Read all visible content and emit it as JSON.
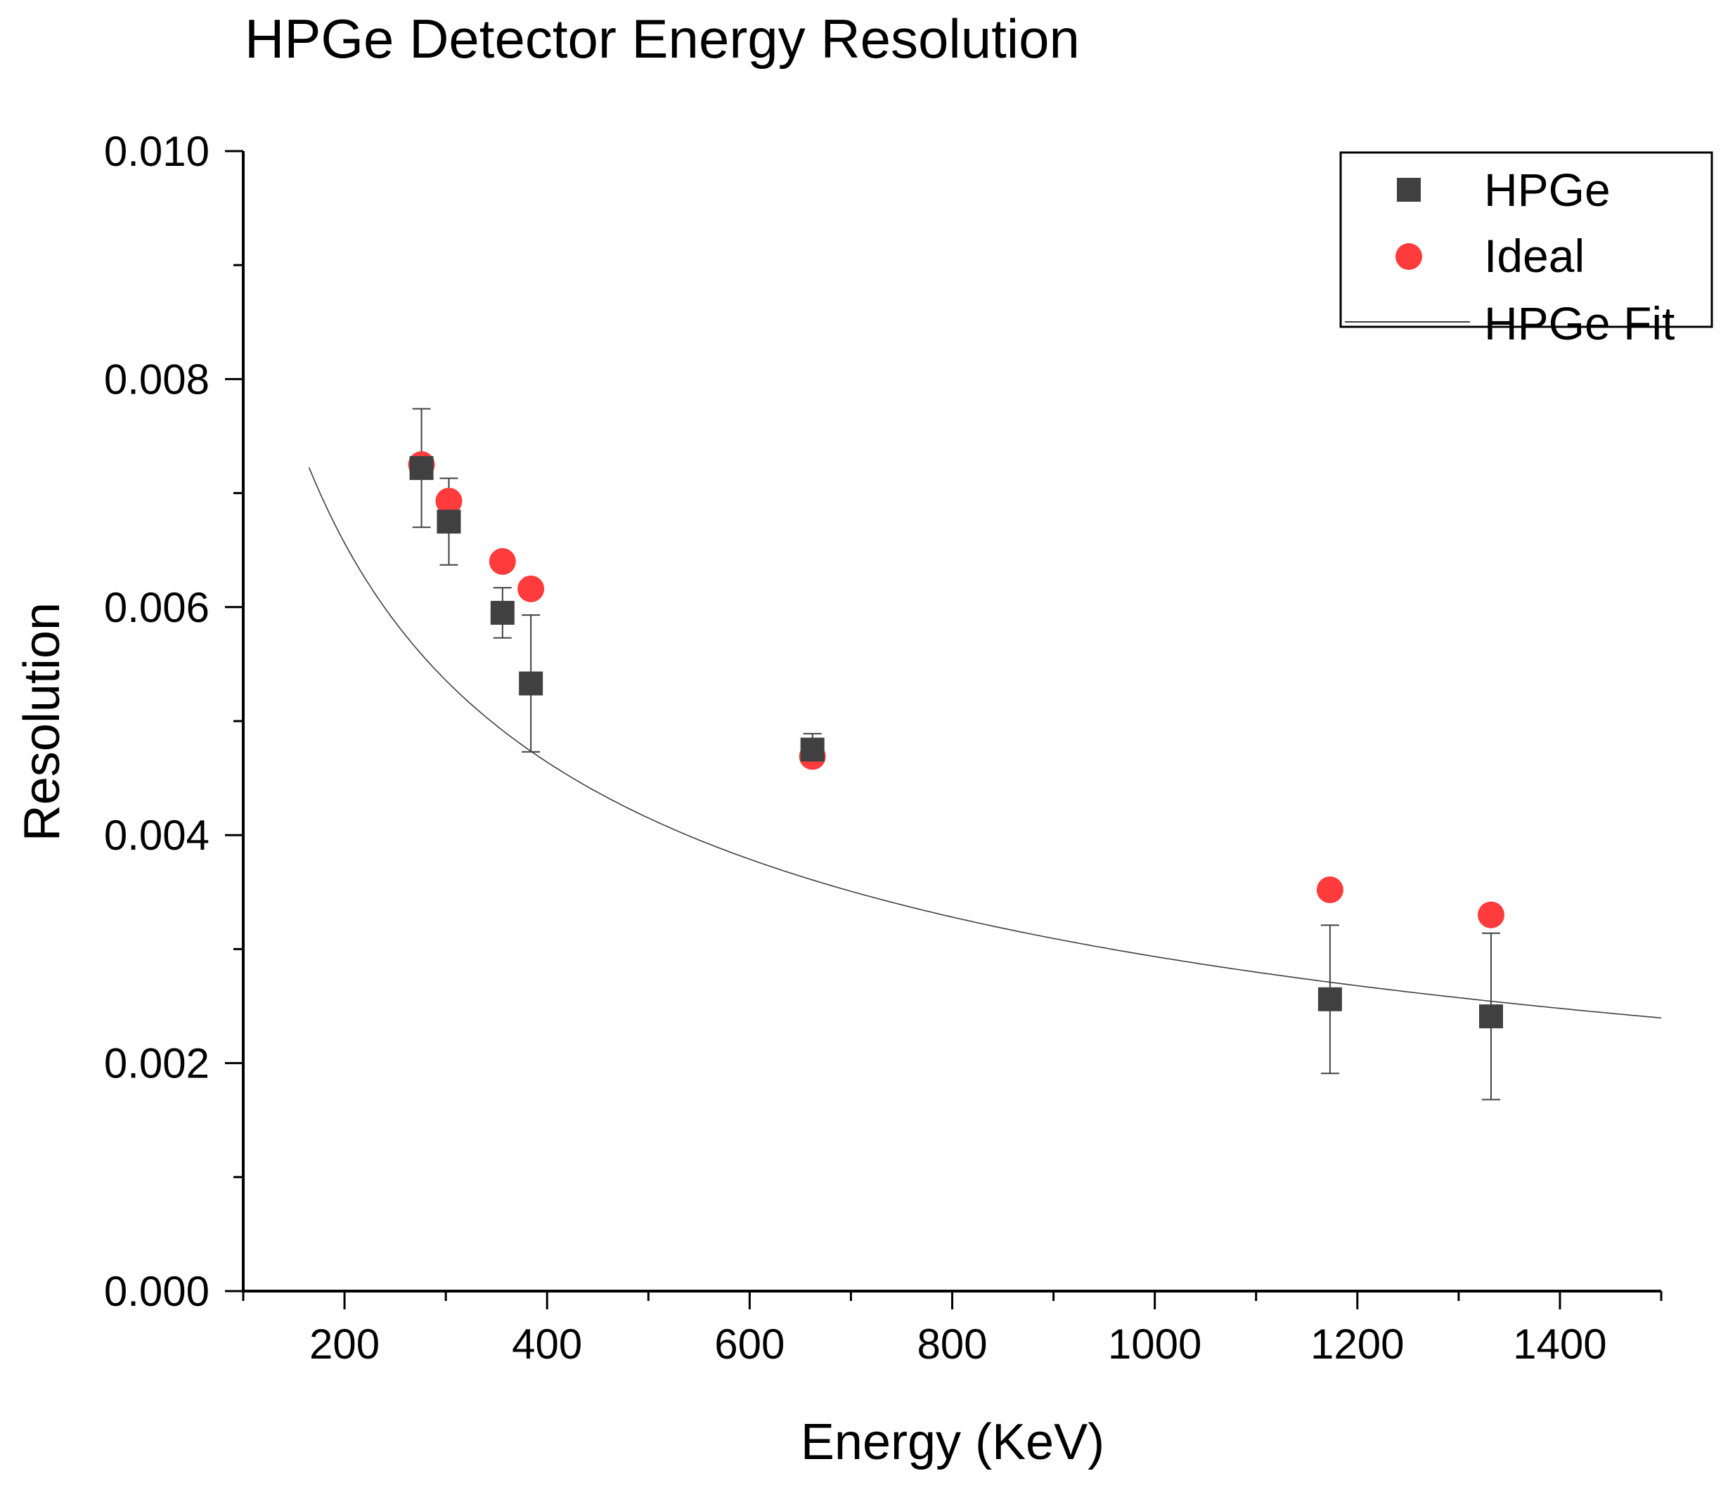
{
  "chart_data": {
    "type": "scatter",
    "title": "HPGe Detector Energy Resolution",
    "xlabel": "Energy (KeV)",
    "ylabel": "Resolution",
    "xlim": [
      100,
      1500
    ],
    "ylim": [
      0.0,
      0.01
    ],
    "x_ticks": [
      200,
      400,
      600,
      800,
      1000,
      1200,
      1400
    ],
    "x_tick_labels": [
      "200",
      "400",
      "600",
      "800",
      "1000",
      "1200",
      "1400"
    ],
    "y_ticks": [
      0.0,
      0.002,
      0.004,
      0.006,
      0.008,
      0.01
    ],
    "y_tick_labels": [
      "0.000",
      "0.002",
      "0.004",
      "0.006",
      "0.008",
      "0.010"
    ],
    "grid": false,
    "legend_position": "top-right",
    "series": [
      {
        "name": "HPGe",
        "marker": "square",
        "color": "#404040",
        "x": [
          276,
          303,
          356,
          384,
          662,
          1173,
          1332
        ],
        "y": [
          0.00722,
          0.00675,
          0.00595,
          0.00533,
          0.00475,
          0.00256,
          0.00241
        ],
        "yerr": [
          0.00052,
          0.00038,
          0.00022,
          0.0006,
          0.00014,
          0.00065,
          0.00073
        ]
      },
      {
        "name": "Ideal",
        "marker": "circle",
        "color": "#ff3b3b",
        "x": [
          276,
          303,
          356,
          384,
          662,
          1173,
          1332
        ],
        "y": [
          0.00725,
          0.00693,
          0.0064,
          0.00616,
          0.00469,
          0.00352,
          0.0033
        ]
      },
      {
        "name": "HPGe Fit",
        "type": "line",
        "color": "#404040",
        "model": "a / sqrt(E)",
        "a": 0.0928,
        "x_range": [
          165,
          1500
        ]
      }
    ]
  }
}
